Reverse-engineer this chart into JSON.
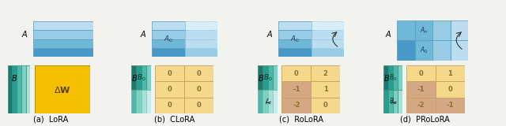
{
  "bg_color": "#f2f2ee",
  "teal_dark": "#1a7a6e",
  "teal_med": "#2a9d8f",
  "teal_light": "#4db8a8",
  "teal_lighter": "#7dd0c4",
  "teal_pale": "#a8e0d8",
  "teal_very_pale": "#c8ecec",
  "blue_dark": "#2878b8",
  "blue_med": "#4898c8",
  "blue_light": "#70b8d8",
  "blue_lighter": "#98cce4",
  "blue_pale": "#bcddf0",
  "blue_very_pale": "#d8eef8",
  "gold_bright": "#f5c000",
  "gold_light": "#f5d88a",
  "brown_light": "#d4a882",
  "text_color": "#333333",
  "matrix_val_color": "#8a7030",
  "label_fs": 7,
  "caption_fs": 7,
  "val_fs": 6,
  "panels": [
    "(a)  LoRA",
    "(b)  CLoRA",
    "(c)  RoLoRA",
    "(d)  PRoLoRA"
  ],
  "rolora_values": [
    [
      0,
      2
    ],
    [
      -1,
      1
    ],
    [
      -2,
      0
    ]
  ],
  "rolora_colors": [
    [
      "gold",
      "gold"
    ],
    [
      "brown",
      "gold"
    ],
    [
      "brown",
      "gold"
    ]
  ],
  "prolora_values": [
    [
      0,
      1
    ],
    [
      -1,
      0
    ],
    [
      -2,
      -1
    ]
  ],
  "prolora_colors": [
    [
      "gold",
      "gold"
    ],
    [
      "brown",
      "gold"
    ],
    [
      "brown",
      "brown"
    ]
  ]
}
